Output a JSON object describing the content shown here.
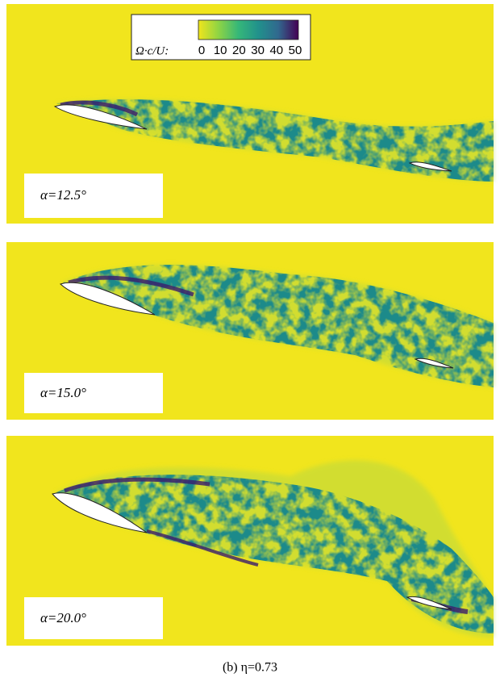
{
  "colorbar": {
    "label": "Ω·c/U:",
    "ticks": [
      0,
      10,
      20,
      30,
      40,
      50
    ]
  },
  "panels": [
    {
      "label": "α=12.5°"
    },
    {
      "label": "α=15.0°"
    },
    {
      "label": "α=20.0°"
    }
  ],
  "caption": "(b)  η=0.73"
}
